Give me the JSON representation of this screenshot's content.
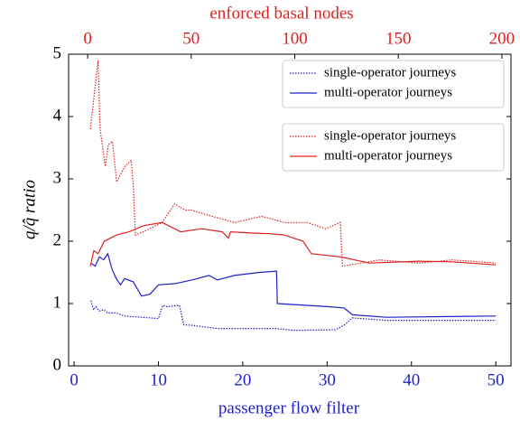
{
  "chart_data": {
    "type": "line",
    "title": "enforced basal nodes",
    "xlabel": "passenger flow filter",
    "ylabel": "q/q̂ ratio",
    "xlim": [
      -0.65,
      51.8
    ],
    "xticks": [
      0,
      10,
      20,
      30,
      40,
      50
    ],
    "x2lim": [
      -9.2,
      204.4
    ],
    "x2ticks": [
      0,
      50,
      100,
      150,
      200
    ],
    "ylim": [
      0,
      5
    ],
    "yticks": [
      0,
      1,
      2,
      3,
      4,
      5
    ],
    "xcolor": "#1f1fcc",
    "x2color": "#e02020",
    "series": [
      {
        "name": "single-operator journeys",
        "color": "#1f1fcc",
        "style": "dotted",
        "axis": "x",
        "x": [
          2,
          2.3,
          2.6,
          3,
          3.5,
          4,
          5,
          6,
          8,
          10,
          10.5,
          11,
          12.5,
          13,
          14,
          17,
          20,
          24,
          26,
          31,
          32,
          33,
          37,
          50
        ],
        "values": [
          1.05,
          0.9,
          0.95,
          0.88,
          0.9,
          0.85,
          0.85,
          0.8,
          0.78,
          0.76,
          0.97,
          0.95,
          0.97,
          0.66,
          0.65,
          0.6,
          0.6,
          0.6,
          0.57,
          0.58,
          0.65,
          0.77,
          0.73,
          0.73
        ]
      },
      {
        "name": "multi-operator journeys",
        "color": "#1f1fcc",
        "style": "solid",
        "axis": "x",
        "x": [
          2,
          2.5,
          3,
          3.5,
          4,
          4.5,
          5,
          5.5,
          6,
          7,
          8,
          9,
          10,
          12,
          14,
          16,
          17,
          19,
          22,
          24,
          24.1,
          30,
          32,
          33,
          37,
          50
        ],
        "values": [
          1.65,
          1.6,
          1.75,
          1.7,
          1.8,
          1.55,
          1.4,
          1.3,
          1.4,
          1.35,
          1.12,
          1.15,
          1.3,
          1.32,
          1.38,
          1.45,
          1.38,
          1.45,
          1.5,
          1.52,
          1.0,
          0.95,
          0.93,
          0.82,
          0.78,
          0.8
        ]
      },
      {
        "name": "single-operator journeys",
        "color": "#e02020",
        "style": "dotted",
        "axis": "x2",
        "x": [
          1.3,
          3,
          5,
          6,
          8.5,
          10,
          12,
          14,
          18,
          21,
          22,
          23,
          30,
          36,
          42,
          47,
          50,
          60,
          71,
          84,
          95,
          106,
          115,
          122,
          123,
          141,
          160,
          176,
          197
        ],
        "values": [
          3.8,
          4.3,
          4.9,
          3.8,
          3.2,
          3.55,
          3.6,
          2.95,
          3.2,
          3.3,
          2.9,
          2.1,
          2.2,
          2.3,
          2.6,
          2.5,
          2.5,
          2.4,
          2.3,
          2.4,
          2.3,
          2.3,
          2.2,
          2.3,
          1.6,
          1.7,
          1.65,
          1.7,
          1.65
        ]
      },
      {
        "name": "multi-operator journeys",
        "color": "#e02020",
        "style": "solid",
        "axis": "x2",
        "x": [
          1.3,
          3,
          5,
          8,
          14,
          20,
          27,
          36,
          45,
          55,
          65,
          68,
          69,
          80,
          88,
          95,
          104,
          108,
          122,
          136,
          160,
          176,
          197
        ],
        "values": [
          1.6,
          1.85,
          1.8,
          2.0,
          2.1,
          2.15,
          2.25,
          2.3,
          2.15,
          2.2,
          2.15,
          2.05,
          2.15,
          2.13,
          2.12,
          2.1,
          2.0,
          1.8,
          1.75,
          1.65,
          1.68,
          1.67,
          1.62
        ]
      }
    ]
  }
}
